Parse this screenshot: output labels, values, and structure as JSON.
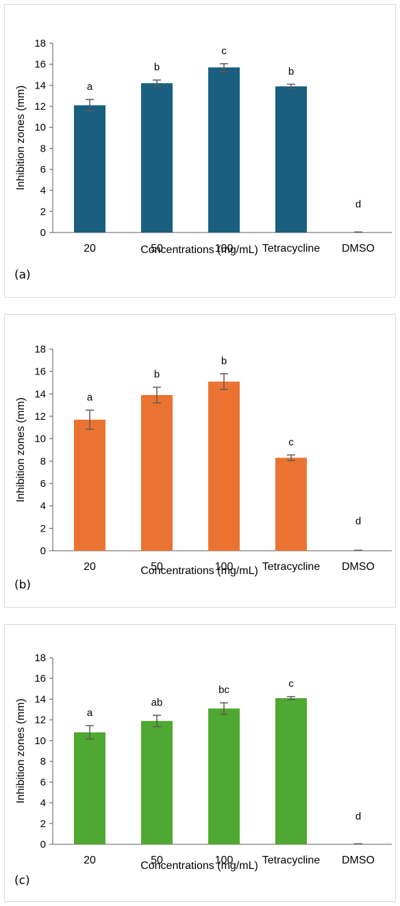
{
  "chart_data": [
    {
      "type": "bar",
      "panel_label": "(a)",
      "categories": [
        "20",
        "50",
        "100",
        "Tetracycline",
        "DMSO"
      ],
      "values": [
        12.1,
        14.2,
        15.7,
        13.9,
        0
      ],
      "errors": [
        0.55,
        0.3,
        0.35,
        0.2,
        0
      ],
      "letters": [
        "a",
        "b",
        "c",
        "b",
        "d"
      ],
      "color": "#1a5f80",
      "xlabel": "Concentrations (mg/mL)",
      "ylabel": "Inhibition zones (mm)",
      "ylim": [
        0,
        18
      ],
      "yticks": [
        0,
        2,
        4,
        6,
        8,
        10,
        12,
        14,
        16,
        18
      ],
      "grid": false
    },
    {
      "type": "bar",
      "panel_label": "(b)",
      "categories": [
        "20",
        "50",
        "100",
        "Tetracycline",
        "DMSO"
      ],
      "values": [
        11.7,
        13.9,
        15.1,
        8.3,
        0
      ],
      "errors": [
        0.85,
        0.7,
        0.7,
        0.25,
        0
      ],
      "letters": [
        "a",
        "b",
        "b",
        "c",
        "d"
      ],
      "color": "#eb7332",
      "xlabel": "Concentrations (mg/mL)",
      "ylabel": "Inhibition zones (mm)",
      "ylim": [
        0,
        18
      ],
      "yticks": [
        0,
        2,
        4,
        6,
        8,
        10,
        12,
        14,
        16,
        18
      ],
      "grid": false
    },
    {
      "type": "bar",
      "panel_label": "(c)",
      "categories": [
        "20",
        "50",
        "100",
        "Tetracycline",
        "DMSO"
      ],
      "values": [
        10.8,
        11.9,
        13.1,
        14.1,
        0
      ],
      "errors": [
        0.65,
        0.55,
        0.55,
        0.15,
        0
      ],
      "letters": [
        "a",
        "ab",
        "bc",
        "c",
        "d"
      ],
      "color": "#4fa831",
      "xlabel": "Concentrations (mg/mL)",
      "ylabel": "Inhibition zones (mm)",
      "ylim": [
        0,
        18
      ],
      "yticks": [
        0,
        2,
        4,
        6,
        8,
        10,
        12,
        14,
        16,
        18
      ],
      "grid": false
    }
  ]
}
